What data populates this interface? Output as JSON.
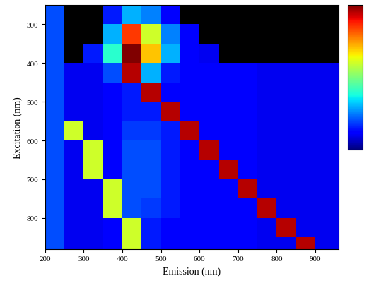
{
  "chart_data": {
    "type": "heatmap",
    "x_label": "Emission (nm)",
    "y_label": "Excitation (nm)",
    "x": [
      225,
      275,
      325,
      375,
      425,
      475,
      525,
      575,
      625,
      675,
      725,
      775,
      825,
      875,
      925,
      975
    ],
    "y": [
      275,
      325,
      375,
      425,
      475,
      525,
      575,
      625,
      675,
      725,
      775,
      825,
      875
    ],
    "cells": [
      [
        20,
        null,
        null,
        15,
        30,
        25,
        12,
        null,
        null,
        null,
        null,
        null,
        null,
        null,
        null,
        null
      ],
      [
        20,
        null,
        null,
        30,
        85,
        60,
        25,
        12,
        null,
        null,
        null,
        null,
        null,
        null,
        null,
        null
      ],
      [
        20,
        null,
        15,
        40,
        100,
        70,
        30,
        12,
        10,
        null,
        null,
        null,
        null,
        null,
        null,
        null
      ],
      [
        20,
        10,
        10,
        20,
        95,
        30,
        15,
        12,
        12,
        12,
        12,
        10,
        10,
        10,
        10,
        10
      ],
      [
        20,
        10,
        10,
        12,
        15,
        95,
        12,
        12,
        12,
        12,
        12,
        10,
        10,
        10,
        10,
        10
      ],
      [
        20,
        10,
        10,
        12,
        15,
        15,
        95,
        12,
        12,
        12,
        12,
        10,
        10,
        10,
        10,
        10
      ],
      [
        20,
        60,
        10,
        12,
        18,
        18,
        15,
        95,
        12,
        12,
        12,
        10,
        10,
        10,
        10,
        10
      ],
      [
        20,
        10,
        60,
        12,
        20,
        20,
        15,
        12,
        95,
        12,
        12,
        10,
        10,
        10,
        10,
        10
      ],
      [
        20,
        10,
        60,
        12,
        20,
        20,
        15,
        12,
        12,
        95,
        12,
        10,
        10,
        10,
        10,
        10
      ],
      [
        20,
        10,
        10,
        60,
        20,
        20,
        15,
        12,
        12,
        12,
        95,
        10,
        10,
        10,
        10,
        10
      ],
      [
        20,
        10,
        10,
        60,
        20,
        18,
        15,
        12,
        12,
        12,
        12,
        95,
        10,
        10,
        10,
        10
      ],
      [
        20,
        10,
        10,
        12,
        60,
        15,
        12,
        12,
        12,
        12,
        12,
        10,
        95,
        10,
        10,
        10
      ],
      [
        20,
        10,
        10,
        12,
        60,
        15,
        12,
        12,
        12,
        12,
        12,
        10,
        10,
        95,
        10,
        10
      ]
    ],
    "colorbar_lim": [
      0,
      100
    ],
    "xlim": [
      200,
      960
    ],
    "ylim": [
      880,
      250
    ],
    "xticks": [
      200,
      300,
      400,
      500,
      600,
      700,
      800,
      900
    ],
    "yticks": [
      300,
      400,
      500,
      600,
      700,
      800
    ]
  }
}
